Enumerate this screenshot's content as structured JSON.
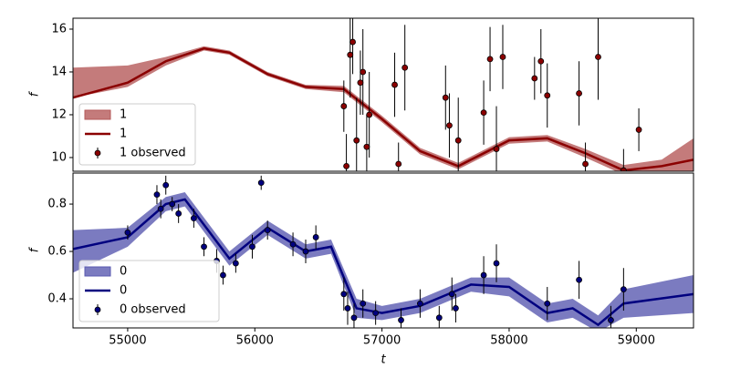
{
  "chart_data": [
    {
      "type": "line",
      "ylabel": "f",
      "xlim": [
        54570,
        59450
      ],
      "ylim": [
        9.36,
        16.51
      ],
      "yticks": [
        10,
        12,
        14,
        16
      ],
      "legend": "lower left",
      "x": [
        54570,
        55000,
        55300,
        55600,
        55800,
        56100,
        56400,
        56700,
        57000,
        57300,
        57600,
        58000,
        58300,
        58600,
        58900,
        59200,
        59450
      ],
      "series": [
        {
          "name": "1",
          "kind": "mean",
          "color": "#8b0000",
          "values": [
            12.8,
            13.5,
            14.5,
            15.1,
            14.9,
            13.9,
            13.3,
            13.2,
            11.8,
            10.3,
            9.6,
            10.8,
            10.9,
            10.2,
            9.4,
            9.6,
            9.9
          ]
        },
        {
          "name": "1",
          "kind": "band",
          "color": "#b55a5a",
          "upper": [
            14.2,
            14.3,
            14.7,
            15.2,
            15.0,
            14.0,
            13.4,
            13.35,
            11.95,
            10.45,
            9.75,
            10.95,
            11.05,
            10.4,
            9.65,
            9.9,
            10.9
          ],
          "lower": [
            12.8,
            13.3,
            14.3,
            15.0,
            14.8,
            13.8,
            13.2,
            13.05,
            11.65,
            10.15,
            9.45,
            10.65,
            10.75,
            10.0,
            9.2,
            9.3,
            9.1
          ]
        },
        {
          "name": "1 observed",
          "kind": "observed",
          "color": "#8b0000",
          "x": [
            56700,
            56720,
            56750,
            56770,
            56800,
            56830,
            56850,
            56880,
            56900,
            57100,
            57130,
            57180,
            57500,
            57530,
            57600,
            57800,
            57850,
            57900,
            57950,
            58200,
            58250,
            58300,
            58550,
            58600,
            58700,
            58900,
            59020
          ],
          "values": [
            12.4,
            9.6,
            14.8,
            15.4,
            10.8,
            13.5,
            14.0,
            10.5,
            12.0,
            13.4,
            9.7,
            14.2,
            12.8,
            11.5,
            10.8,
            12.1,
            14.6,
            10.4,
            14.7,
            13.7,
            14.5,
            12.9,
            13.0,
            9.7,
            14.7,
            9.4,
            11.3
          ],
          "errors": [
            1.2,
            1.5,
            2,
            1.5,
            2,
            1.5,
            2,
            1.5,
            2,
            1.5,
            1,
            2,
            1.5,
            1.5,
            2,
            1.5,
            1.5,
            2,
            1.5,
            1,
            1.5,
            1.5,
            1.5,
            1,
            2,
            1,
            1
          ]
        }
      ]
    },
    {
      "type": "line",
      "ylabel": "f",
      "xlabel": "t",
      "xlim": [
        54570,
        59450
      ],
      "ylim": [
        0.277,
        0.931
      ],
      "yticks": [
        0.4,
        0.6,
        0.8
      ],
      "xticks": [
        55000,
        56000,
        57000,
        58000,
        59000
      ],
      "legend": "lower left",
      "x": [
        54570,
        55000,
        55300,
        55450,
        55800,
        56100,
        56400,
        56600,
        56800,
        57000,
        57300,
        57700,
        58000,
        58300,
        58500,
        58700,
        58900,
        59450
      ],
      "series": [
        {
          "name": "0",
          "kind": "mean",
          "color": "#00007f",
          "values": [
            0.61,
            0.66,
            0.8,
            0.82,
            0.57,
            0.7,
            0.6,
            0.62,
            0.36,
            0.34,
            0.37,
            0.46,
            0.45,
            0.34,
            0.36,
            0.29,
            0.38,
            0.42
          ]
        },
        {
          "name": "0",
          "kind": "band",
          "color": "#5a5ab0",
          "upper": [
            0.69,
            0.7,
            0.83,
            0.85,
            0.6,
            0.73,
            0.63,
            0.65,
            0.4,
            0.37,
            0.4,
            0.49,
            0.49,
            0.38,
            0.4,
            0.33,
            0.44,
            0.5
          ],
          "lower": [
            0.51,
            0.62,
            0.77,
            0.79,
            0.54,
            0.67,
            0.57,
            0.59,
            0.32,
            0.31,
            0.34,
            0.43,
            0.41,
            0.3,
            0.32,
            0.26,
            0.32,
            0.34
          ]
        },
        {
          "name": "0 observed",
          "kind": "observed",
          "color": "#00007f",
          "x": [
            55000,
            55230,
            55260,
            55300,
            55350,
            55400,
            55520,
            55600,
            55700,
            55750,
            55850,
            55980,
            56050,
            56100,
            56300,
            56400,
            56480,
            56700,
            56730,
            56780,
            56850,
            56950,
            57150,
            57300,
            57450,
            57550,
            57580,
            57800,
            57900,
            58300,
            58550,
            58800,
            58900
          ],
          "values": [
            0.68,
            0.84,
            0.78,
            0.88,
            0.8,
            0.76,
            0.74,
            0.62,
            0.56,
            0.5,
            0.55,
            0.62,
            0.89,
            0.69,
            0.63,
            0.6,
            0.66,
            0.42,
            0.36,
            0.32,
            0.38,
            0.34,
            0.31,
            0.38,
            0.32,
            0.42,
            0.36,
            0.5,
            0.55,
            0.38,
            0.48,
            0.31,
            0.44
          ],
          "errors": [
            0.03,
            0.04,
            0.04,
            0.04,
            0.03,
            0.04,
            0.04,
            0.04,
            0.05,
            0.04,
            0.04,
            0.05,
            0.03,
            0.04,
            0.05,
            0.05,
            0.05,
            0.07,
            0.07,
            0.06,
            0.06,
            0.05,
            0.05,
            0.06,
            0.05,
            0.07,
            0.06,
            0.08,
            0.08,
            0.07,
            0.08,
            0.06,
            0.09
          ]
        }
      ]
    }
  ]
}
